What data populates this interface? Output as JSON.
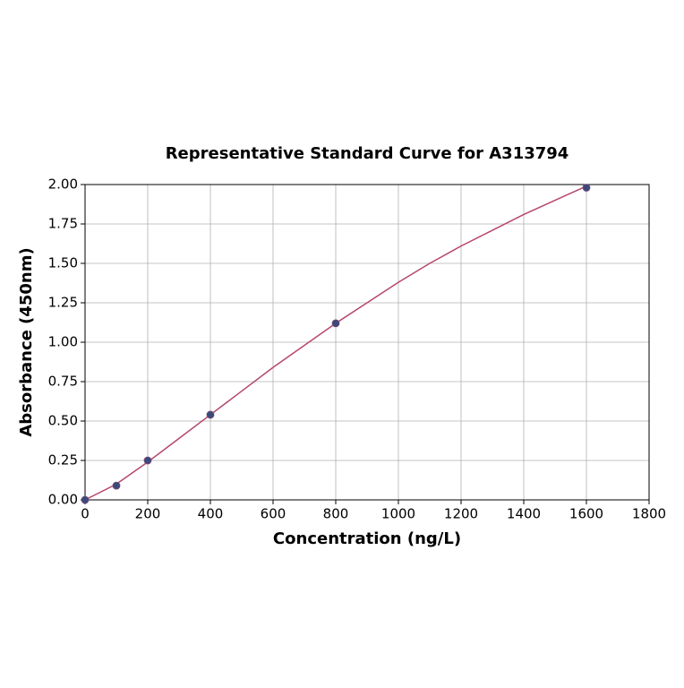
{
  "chart_data": {
    "type": "scatter",
    "title": "Representative Standard Curve for A313794",
    "x_label": "Concentration (ng/L)",
    "y_label": "Absorbance (450nm)",
    "xlim": [
      0,
      1800
    ],
    "ylim": [
      0,
      2
    ],
    "xticks": [
      0,
      200,
      400,
      600,
      800,
      1000,
      1200,
      1400,
      1600,
      1800
    ],
    "yticks": [
      {
        "value": 0,
        "label": "0.00"
      },
      {
        "value": 0.25,
        "label": "0.25"
      },
      {
        "value": 0.5,
        "label": "0.50"
      },
      {
        "value": 0.75,
        "label": "0.75"
      },
      {
        "value": 1,
        "label": "1.00"
      },
      {
        "value": 1.25,
        "label": "1.25"
      },
      {
        "value": 1.5,
        "label": "1.50"
      },
      {
        "value": 1.75,
        "label": "1.75"
      },
      {
        "value": 2,
        "label": "2.00"
      }
    ],
    "grid": true,
    "series": [
      {
        "type": "line",
        "color": "#b5476a",
        "x": [
          0,
          100,
          200,
          300,
          400,
          500,
          600,
          700,
          800,
          900,
          1000,
          1100,
          1200,
          1300,
          1400,
          1500,
          1600
        ],
        "values": [
          0.0,
          0.1,
          0.24,
          0.39,
          0.54,
          0.69,
          0.84,
          0.98,
          1.12,
          1.25,
          1.38,
          1.5,
          1.61,
          1.71,
          1.81,
          1.9,
          1.99
        ]
      },
      {
        "type": "scatter",
        "color": "#3b4a7a",
        "x": [
          0,
          100,
          200,
          400,
          800,
          1600
        ],
        "values": [
          0.0,
          0.09,
          0.25,
          0.54,
          1.12,
          1.98
        ]
      }
    ]
  }
}
